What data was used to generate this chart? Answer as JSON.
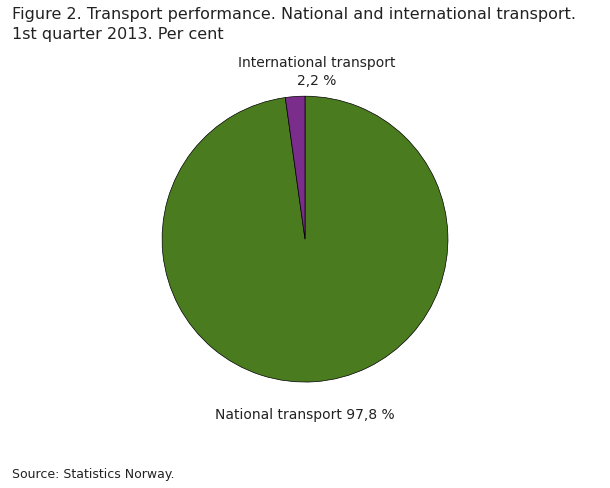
{
  "title_line1": "Figure 2. Transport performance. National and international transport.",
  "title_line2": "1st quarter 2013. Per cent",
  "title_fontsize": 11.5,
  "slices": [
    97.8,
    2.2
  ],
  "colors": [
    "#4a7c1f",
    "#7b2d8b"
  ],
  "label_national": "National transport 97,8 %",
  "label_international_line1": "International transport",
  "label_international_line2": "2,2 %",
  "source": "Source: Statistics Norway.",
  "source_fontsize": 9,
  "startangle": 90,
  "label_fontsize": 10
}
